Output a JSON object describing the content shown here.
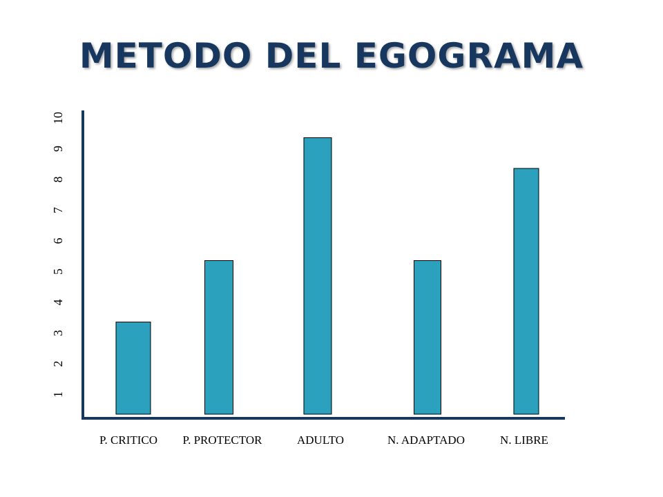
{
  "title": "METODO DEL EGOGRAMA",
  "chart_data": {
    "type": "bar",
    "categories": [
      "P. CRITICO",
      "P. PROTECTOR",
      "ADULTO",
      "N. ADAPTADO",
      "N. LIBRE"
    ],
    "values": [
      3,
      5,
      9,
      5,
      8
    ],
    "y_ticks": [
      "1",
      "2",
      "3",
      "4",
      "5",
      "6",
      "7",
      "8",
      "9",
      "10"
    ],
    "ylim": [
      0,
      10
    ],
    "grid": false,
    "colors": {
      "bar": "#2ca1bd",
      "bar_border": "#000000",
      "axis": "#17375e"
    }
  }
}
